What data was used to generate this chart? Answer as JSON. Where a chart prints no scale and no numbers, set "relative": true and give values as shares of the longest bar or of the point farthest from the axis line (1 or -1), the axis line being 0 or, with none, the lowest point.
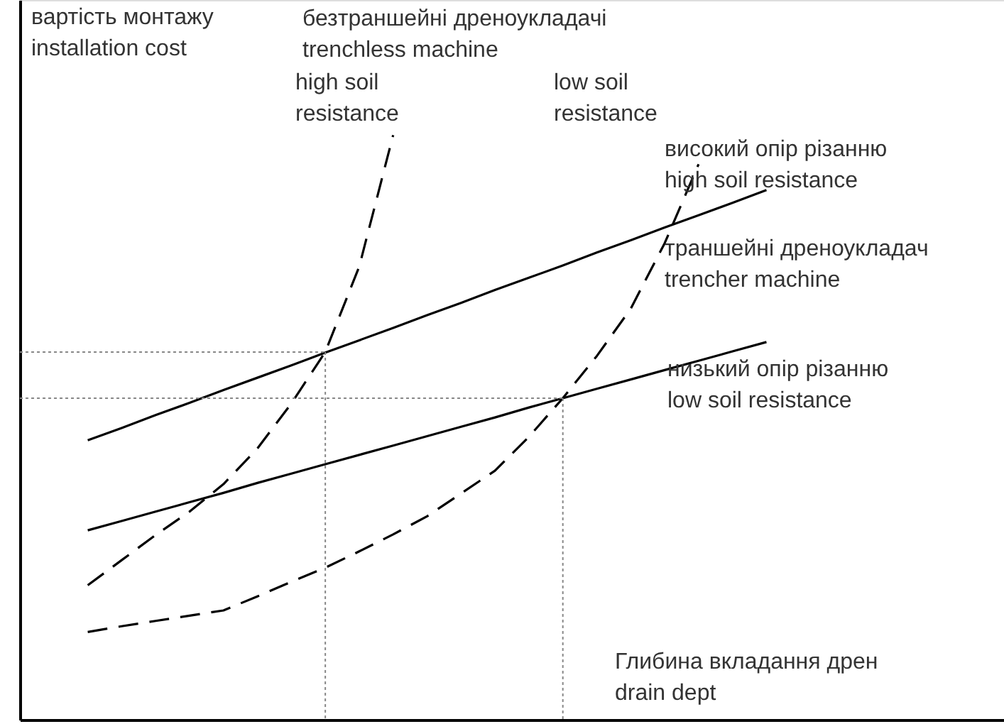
{
  "chart_data": {
    "type": "line",
    "relative": true,
    "grid": false,
    "xlabel": "Глибина вкладання дрен\ndrain dept",
    "ylabel": "вартість монтажу\ninstallation cost",
    "categories": [
      null,
      null,
      null,
      null,
      null,
      null,
      null,
      null,
      null,
      null,
      null,
      null,
      null,
      null,
      null,
      null,
      null,
      null,
      null,
      null,
      null,
      null,
      null,
      null,
      null,
      null,
      null,
      null,
      null,
      null
    ],
    "series": [
      {
        "line_style": "solid",
        "color": "#000000",
        "values": [
          null,
          null,
          0.478,
          0.499,
          0.521,
          0.542,
          0.564,
          0.585,
          0.606,
          0.628,
          0.649,
          0.67,
          0.692,
          0.713,
          0.735,
          0.756,
          0.777,
          0.799,
          0.82,
          0.842,
          0.863,
          0.884,
          0.906,
          null,
          null,
          null,
          null,
          null,
          null,
          null
        ]
      },
      {
        "line_style": "solid",
        "color": "#000000",
        "values": [
          null,
          null,
          0.324,
          0.34,
          0.356,
          0.372,
          0.388,
          0.405,
          0.421,
          0.437,
          0.453,
          0.469,
          0.485,
          0.501,
          0.517,
          0.534,
          0.55,
          0.566,
          0.582,
          0.598,
          0.614,
          0.63,
          0.646,
          null,
          null,
          null,
          null,
          null,
          null,
          null
        ]
      },
      {
        "line_style": "dashed",
        "color": "#000000",
        "values": [
          null,
          null,
          0.23,
          0.273,
          0.316,
          0.356,
          0.403,
          0.464,
          0.541,
          0.629,
          0.775,
          1.0,
          null,
          null,
          null,
          null,
          null,
          null,
          null,
          null,
          null,
          null,
          null,
          null,
          null,
          null,
          null,
          null,
          null,
          null
        ]
      },
      {
        "line_style": "dashed",
        "color": "#000000",
        "values": [
          null,
          null,
          0.15,
          0.16,
          0.169,
          0.178,
          0.187,
          0.211,
          0.236,
          0.26,
          0.288,
          0.317,
          0.348,
          0.387,
          0.426,
          0.484,
          0.55,
          0.622,
          0.703,
          0.815,
          0.95,
          null,
          null,
          null,
          null,
          null,
          null,
          null,
          null,
          null
        ]
      },
      {
        "line_style": "dotted",
        "color": "#888888",
        "values": [
          0.629,
          0.629,
          0.629,
          0.629,
          0.629,
          0.629,
          0.629,
          0.629,
          0.629,
          0.629,
          null,
          null,
          null,
          null,
          null,
          null,
          null,
          null,
          null,
          null,
          null,
          null,
          null,
          null,
          null,
          null,
          null,
          null,
          null,
          null
        ]
      },
      {
        "line_style": "dotted",
        "color": "#888888",
        "values": [
          0.55,
          0.55,
          0.55,
          0.55,
          0.55,
          0.55,
          0.55,
          0.55,
          0.55,
          0.55,
          0.55,
          0.55,
          0.55,
          0.55,
          0.55,
          0.55,
          0.55,
          null,
          null,
          null,
          null,
          null,
          null,
          null,
          null,
          null,
          null,
          null,
          null,
          null
        ]
      }
    ],
    "annotations": [
      "безтраншейні дреноукладачі\ntrenchless machine",
      "high soil\nresistance",
      "low soil\nresistance",
      "високий опір різанню\nhigh soil resistance",
      "траншейні дреноукладач\ntrencher machine",
      "низький опір різанню\nlow soil resistance"
    ]
  }
}
